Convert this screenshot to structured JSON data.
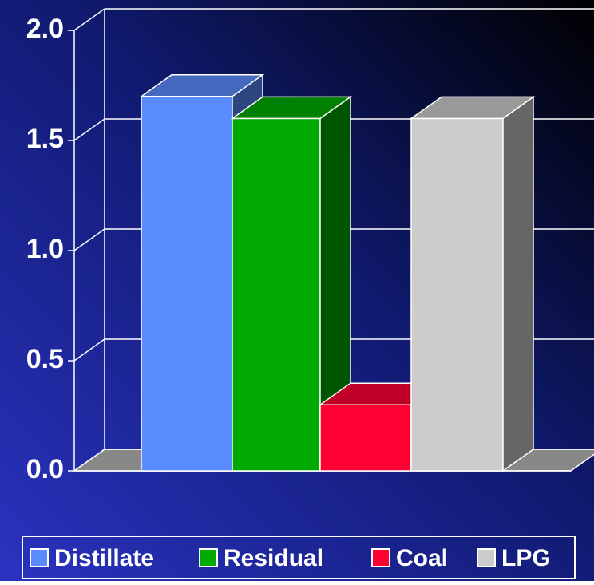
{
  "chart_data": {
    "type": "bar3d",
    "categories": [
      "Distillate",
      "Residual",
      "Coal",
      "LPG"
    ],
    "values": [
      1.7,
      1.6,
      0.3,
      1.6
    ],
    "colors": [
      "#5b8cff",
      "#00aa00",
      "#ff0033",
      "#cccccc"
    ],
    "ylim": [
      0,
      2
    ],
    "yticks": [
      {
        "value": 0,
        "label": "0.0"
      },
      0.5,
      {
        "value": 1,
        "label": "1.0"
      },
      1.5,
      {
        "value": 2,
        "label": "2.0"
      }
    ],
    "grid": true,
    "legend": "bottom"
  }
}
